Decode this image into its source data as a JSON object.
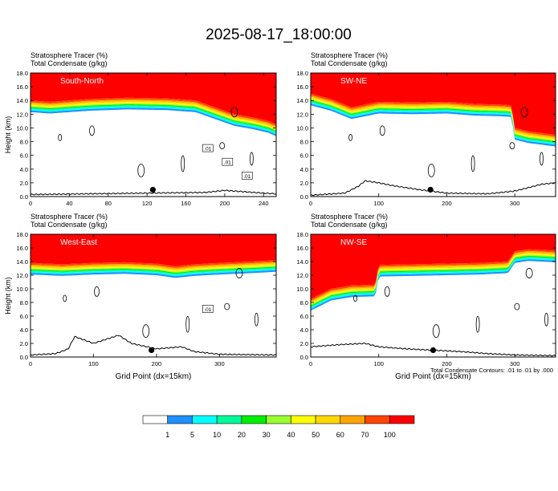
{
  "title": "2025-08-17_18:00:00",
  "footnote": "Total Condensate Contours: .01 to .01 by .000",
  "colorbar": {
    "labels": [
      "1",
      "5",
      "10",
      "20",
      "30",
      "40",
      "50",
      "60",
      "70",
      "100"
    ],
    "colors": [
      "#ffffff",
      "#1e90ff",
      "#00ffff",
      "#00fa9a",
      "#00ee00",
      "#9aff32",
      "#ffff00",
      "#ffd700",
      "#ffa500",
      "#ff4500",
      "#ff0000"
    ]
  },
  "chart_data": [
    {
      "type": "heatmap",
      "label": "South-North",
      "left_title": "Stratosphere Tracer   (%)",
      "left_title2": "Total Condensate   (g/kg)",
      "ylabel": "Height (km)",
      "xlabel": "",
      "ylim": [
        0,
        18
      ],
      "xlim": [
        0,
        253
      ],
      "yticks": [
        "0.0",
        "2.0",
        "4.0",
        "6.0",
        "8.0",
        "10.0",
        "12.0",
        "14.0",
        "16.0",
        "18.0"
      ],
      "xticks": [
        "0",
        "40",
        "80",
        "120",
        "160",
        "200",
        "240"
      ],
      "xtick_values": [
        0,
        40,
        80,
        120,
        160,
        200,
        240
      ],
      "tracer_boundary_km": {
        "x": [
          0,
          20,
          60,
          100,
          140,
          170,
          190,
          210,
          230,
          245,
          253
        ],
        "y": [
          14.0,
          13.8,
          14.2,
          14.4,
          14.3,
          14.0,
          13.0,
          12.0,
          11.5,
          11.0,
          10.5
        ]
      },
      "terrain_km": {
        "x": [
          0,
          60,
          120,
          180,
          200,
          220,
          240,
          253
        ],
        "y": [
          0.3,
          0.4,
          0.5,
          0.6,
          0.9,
          0.7,
          0.5,
          0.4
        ]
      },
      "contour_labels": [
        ".01",
        ".01",
        ".01"
      ],
      "marker": {
        "x": 126,
        "y": 1.0
      }
    },
    {
      "type": "heatmap",
      "label": "SW-NE",
      "left_title": "Stratosphere Tracer   (%)",
      "left_title2": "Total Condensate   (g/kg)",
      "ylabel": "",
      "xlabel": "",
      "ylim": [
        0,
        18
      ],
      "xlim": [
        0,
        360
      ],
      "yticks": [
        "0.0",
        "2.0",
        "4.0",
        "6.0",
        "8.0",
        "10.0",
        "12.0",
        "14.0",
        "16.0",
        "18.0"
      ],
      "xticks": [
        "0",
        "100",
        "200",
        "300"
      ],
      "xtick_values": [
        0,
        100,
        200,
        300
      ],
      "tracer_boundary_km": {
        "x": [
          0,
          30,
          60,
          100,
          150,
          200,
          240,
          280,
          295,
          300,
          320,
          360
        ],
        "y": [
          15.0,
          14.2,
          13.0,
          13.8,
          13.7,
          13.8,
          13.5,
          13.4,
          13.3,
          10.0,
          9.5,
          9.0
        ]
      },
      "terrain_km": {
        "x": [
          0,
          50,
          70,
          80,
          100,
          120,
          160,
          200,
          260,
          300,
          340,
          360
        ],
        "y": [
          0.2,
          0.5,
          1.5,
          2.3,
          2.0,
          1.6,
          1.0,
          0.5,
          0.4,
          0.8,
          1.8,
          2.0
        ]
      },
      "contour_labels": [],
      "marker": {
        "x": 176,
        "y": 1.0
      }
    },
    {
      "type": "heatmap",
      "label": "West-East",
      "left_title": "Stratosphere Tracer   (%)",
      "left_title2": "Total Condensate   (g/kg)",
      "ylabel": "Height (km)",
      "xlabel": "Grid Point (dx=15km)",
      "ylim": [
        0,
        18
      ],
      "xlim": [
        0,
        390
      ],
      "yticks": [
        "0.0",
        "2.0",
        "4.0",
        "6.0",
        "8.0",
        "10.0",
        "12.0",
        "14.0",
        "16.0",
        "18.0"
      ],
      "xticks": [
        "0",
        "100",
        "200",
        "300"
      ],
      "xtick_values": [
        0,
        100,
        200,
        300
      ],
      "tracer_boundary_km": {
        "x": [
          0,
          50,
          100,
          150,
          200,
          230,
          260,
          300,
          350,
          390
        ],
        "y": [
          13.8,
          13.6,
          13.8,
          13.9,
          13.7,
          13.3,
          13.6,
          13.8,
          14.0,
          14.2
        ]
      },
      "terrain_km": {
        "x": [
          0,
          40,
          60,
          70,
          100,
          140,
          160,
          200,
          240,
          260,
          300,
          390
        ],
        "y": [
          0.3,
          0.5,
          1.2,
          3.0,
          2.0,
          3.2,
          2.0,
          1.2,
          1.5,
          0.8,
          0.4,
          0.3
        ]
      },
      "contour_labels": [
        ".01"
      ],
      "marker": {
        "x": 192,
        "y": 1.0
      }
    },
    {
      "type": "heatmap",
      "label": "NW-SE",
      "left_title": "Stratosphere Tracer   (%)",
      "left_title2": "Total Condensate   (g/kg)",
      "ylabel": "",
      "xlabel": "Grid Point (dx=15km)",
      "ylim": [
        0,
        18
      ],
      "xlim": [
        0,
        360
      ],
      "yticks": [
        "0.0",
        "2.0",
        "4.0",
        "6.0",
        "8.0",
        "10.0",
        "12.0",
        "14.0",
        "16.0",
        "18.0"
      ],
      "xticks": [
        "0",
        "100",
        "200",
        "300"
      ],
      "xtick_values": [
        0,
        100,
        200,
        300
      ],
      "tracer_boundary_km": {
        "x": [
          0,
          30,
          60,
          95,
          100,
          150,
          200,
          250,
          290,
          300,
          320,
          360
        ],
        "y": [
          8.5,
          10.0,
          10.5,
          10.6,
          13.5,
          13.6,
          13.7,
          13.8,
          14.0,
          15.5,
          15.8,
          15.6
        ]
      },
      "terrain_km": {
        "x": [
          0,
          40,
          80,
          100,
          140,
          180,
          220,
          260,
          300,
          360
        ],
        "y": [
          1.5,
          1.8,
          2.0,
          1.5,
          1.2,
          1.0,
          0.8,
          0.5,
          0.3,
          0.2
        ]
      },
      "contour_labels": [],
      "marker": {
        "x": 180,
        "y": 1.0
      }
    }
  ]
}
